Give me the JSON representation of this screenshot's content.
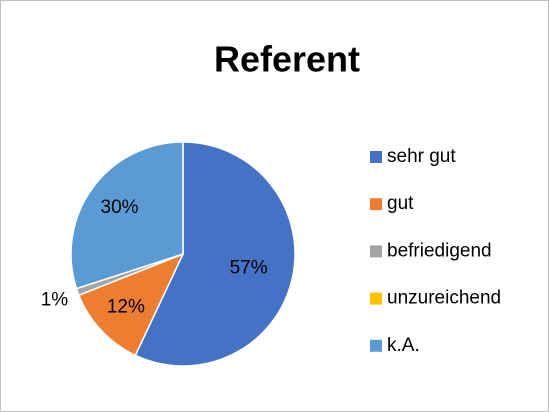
{
  "chart_data": {
    "type": "pie",
    "title": "Referent",
    "categories": [
      "sehr gut",
      "gut",
      "befriedigend",
      "unzureichend",
      "k.A."
    ],
    "values": [
      57,
      12,
      1,
      0,
      30
    ],
    "value_labels": [
      "57%",
      "12%",
      "1%",
      null,
      "30%"
    ],
    "colors": [
      "#4472c4",
      "#ed7d31",
      "#a5a5a5",
      "#ffc000",
      "#5b9bd5"
    ],
    "legend": "right"
  }
}
